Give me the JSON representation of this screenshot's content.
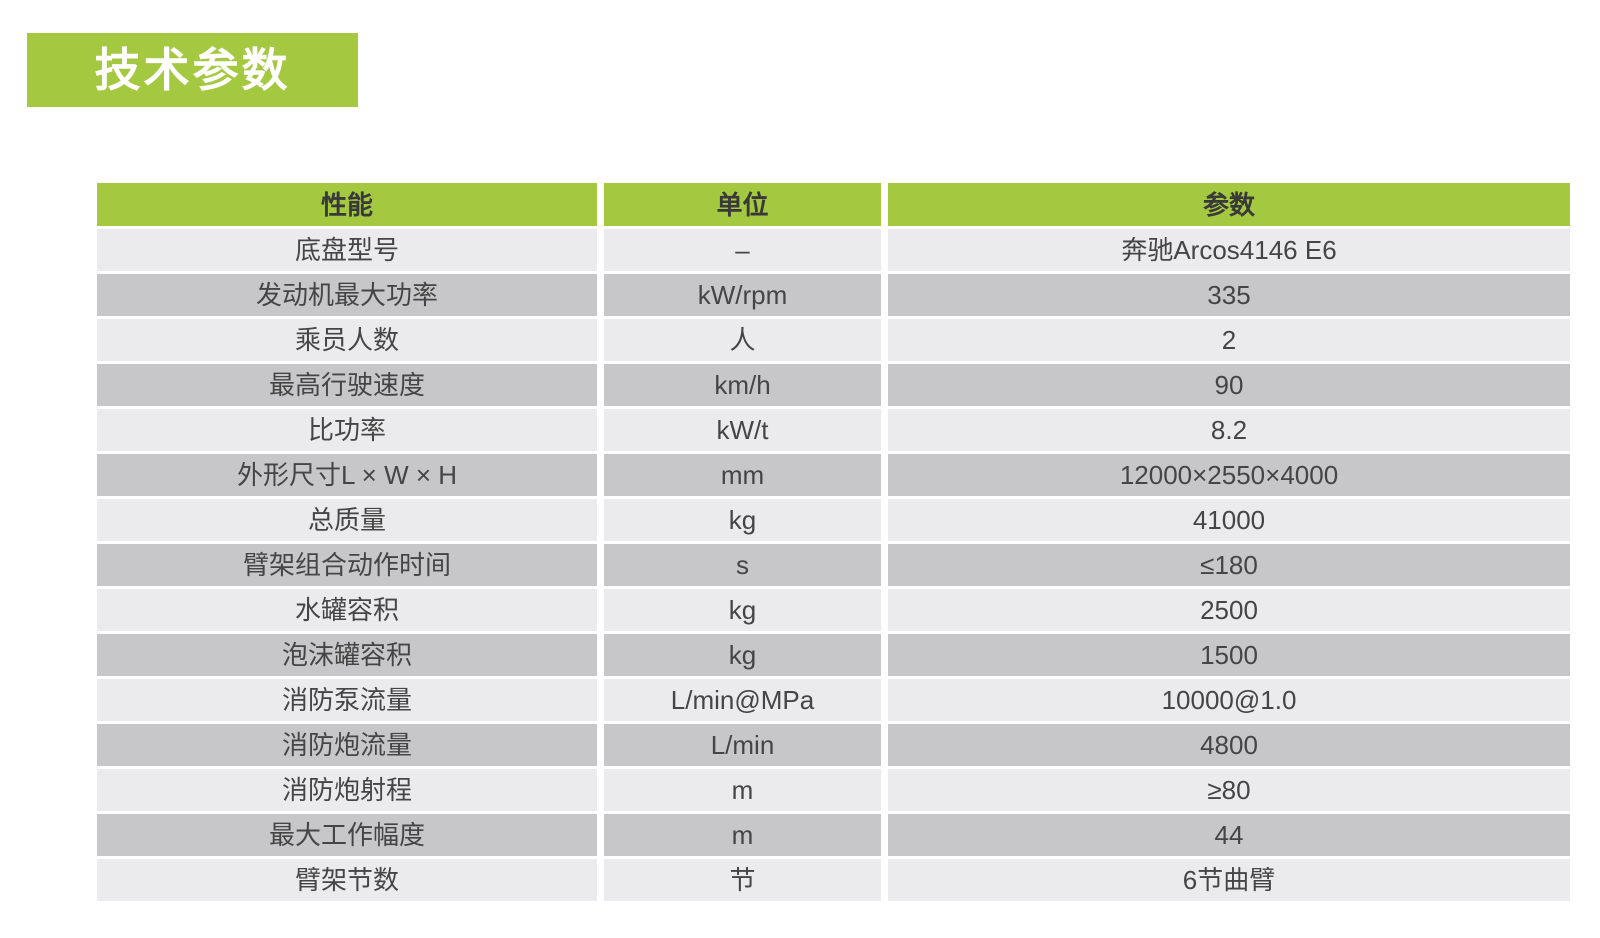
{
  "page": {
    "title": "技术参数"
  },
  "table": {
    "columns": [
      "性能",
      "单位",
      "参数"
    ],
    "rows": [
      [
        "底盘型号",
        "–",
        "奔驰Arcos4146 E6"
      ],
      [
        "发动机最大功率",
        "kW/rpm",
        "335"
      ],
      [
        "乘员人数",
        "人",
        "2"
      ],
      [
        "最高行驶速度",
        "km/h",
        "90"
      ],
      [
        "比功率",
        "kW/t",
        "8.2"
      ],
      [
        "外形尺寸L × W × H",
        "mm",
        "12000×2550×4000"
      ],
      [
        "总质量",
        "kg",
        "41000"
      ],
      [
        "臂架组合动作时间",
        "s",
        "≤180"
      ],
      [
        "水罐容积",
        "kg",
        "2500"
      ],
      [
        "泡沫罐容积",
        "kg",
        "1500"
      ],
      [
        "消防泵流量",
        "L/min@MPa",
        "10000@1.0"
      ],
      [
        "消防炮流量",
        "L/min",
        "4800"
      ],
      [
        "消防炮射程",
        "m",
        "≥80"
      ],
      [
        "最大工作幅度",
        "m",
        "44"
      ],
      [
        "臂架节数",
        "节",
        "6节曲臂"
      ]
    ]
  },
  "colors": {
    "accent_green": "#a4c83f",
    "row_light": "#ebebed",
    "row_dark": "#c7c7c9",
    "text": "#454545"
  }
}
